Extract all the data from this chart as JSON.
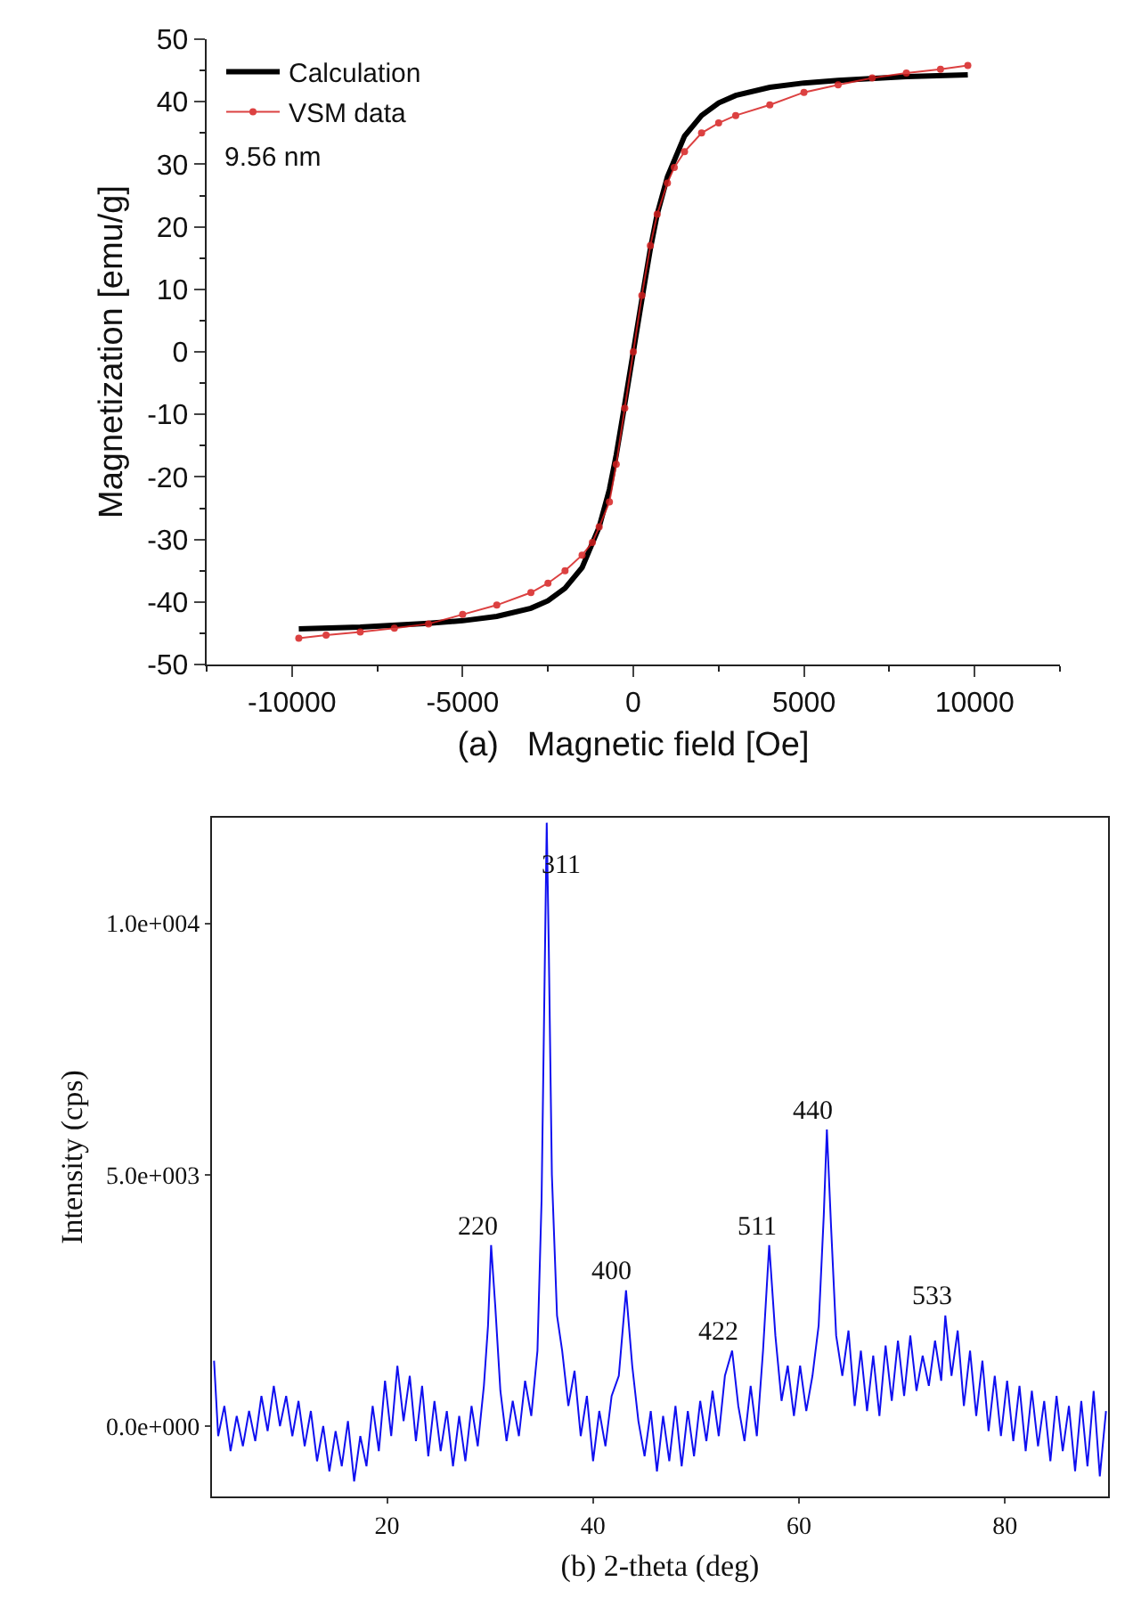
{
  "chart_data": [
    {
      "type": "line",
      "xlabel": "(a)   Magnetic field [Oe]",
      "ylabel": "Magnetization [emu/g]",
      "xlim": [
        -12500,
        12500
      ],
      "xticks": [
        -10000,
        -5000,
        0,
        5000,
        10000
      ],
      "ylim": [
        -50,
        50
      ],
      "yticks": [
        -50,
        -40,
        -30,
        -20,
        -10,
        0,
        10,
        20,
        30,
        40,
        50
      ],
      "legend": "top left",
      "line_style": "solid",
      "annotations": [
        "9.56 nm"
      ],
      "series": [
        {
          "name": "Calculation",
          "color": "#000000",
          "marker": "none",
          "x": [
            -9800,
            -8000,
            -6000,
            -5000,
            -4000,
            -3000,
            -2500,
            -2000,
            -1500,
            -1000,
            -700,
            -500,
            -300,
            0,
            300,
            500,
            700,
            1000,
            1500,
            2000,
            2500,
            3000,
            4000,
            5000,
            6000,
            8000,
            9800
          ],
          "values": [
            -44.3,
            -44.0,
            -43.4,
            -43.0,
            -42.3,
            -41.0,
            -39.8,
            -37.8,
            -34.5,
            -28,
            -22,
            -16.5,
            -10,
            0,
            10,
            16.5,
            22,
            28,
            34.5,
            37.8,
            39.8,
            41.0,
            42.3,
            43.0,
            43.4,
            44.0,
            44.3
          ]
        },
        {
          "name": "VSM data",
          "color": "#d62020",
          "marker": "circle",
          "x": [
            -9800,
            -9000,
            -8000,
            -7000,
            -6000,
            -5000,
            -4000,
            -3000,
            -2500,
            -2000,
            -1500,
            -1200,
            -1000,
            -700,
            -500,
            -250,
            0,
            250,
            500,
            700,
            1000,
            1200,
            1500,
            2000,
            2500,
            3000,
            4000,
            5000,
            6000,
            7000,
            8000,
            9000,
            9800
          ],
          "values": [
            -45.8,
            -45.3,
            -44.8,
            -44.2,
            -43.5,
            -42.0,
            -40.5,
            -38.5,
            -37.0,
            -35.0,
            -32.5,
            -30.5,
            -28,
            -24,
            -18,
            -9,
            0,
            9,
            17,
            22,
            27,
            29.5,
            32,
            35,
            36.6,
            37.8,
            39.5,
            41.5,
            42.7,
            43.8,
            44.6,
            45.2,
            45.8
          ]
        }
      ]
    },
    {
      "type": "line",
      "xlabel": "(b) 2-theta (deg)",
      "ylabel": "Intensity (cps)",
      "xlim": [
        3,
        90
      ],
      "xticks": [
        20,
        40,
        60,
        80
      ],
      "ylim": [
        -1400,
        12100
      ],
      "yticks": [
        {
          "value": 0,
          "label": "0.0e+000"
        },
        {
          "value": 5000,
          "label": "5.0e+003"
        },
        {
          "value": 10000,
          "label": "1.0e+004"
        }
      ],
      "legend": false,
      "line_style": "solid",
      "annotations": [
        {
          "text": "220",
          "x": 30.1,
          "y": 3600
        },
        {
          "text": "311",
          "x": 35.5,
          "y": 12000
        },
        {
          "text": "400",
          "x": 43.2,
          "y": 2700
        },
        {
          "text": "422",
          "x": 53.5,
          "y": 1500
        },
        {
          "text": "511",
          "x": 57.1,
          "y": 3600
        },
        {
          "text": "440",
          "x": 62.7,
          "y": 5900
        },
        {
          "text": "533",
          "x": 74.2,
          "y": 2200
        }
      ],
      "series": [
        {
          "color": "#1010f0",
          "marker": "none",
          "x": [
            3.2,
            3.6,
            4.2,
            4.8,
            5.4,
            6.0,
            6.6,
            7.2,
            7.8,
            8.4,
            9.0,
            9.6,
            10.2,
            10.8,
            11.4,
            12.0,
            12.6,
            13.2,
            13.8,
            14.4,
            15.0,
            15.6,
            16.2,
            16.8,
            17.4,
            18.0,
            18.6,
            19.2,
            19.8,
            20.4,
            21.0,
            21.6,
            22.2,
            22.8,
            23.4,
            24.0,
            24.6,
            25.2,
            25.8,
            26.4,
            27.0,
            27.6,
            28.2,
            28.8,
            29.4,
            29.8,
            30.1,
            30.5,
            31.0,
            31.6,
            32.2,
            32.8,
            33.4,
            34.0,
            34.6,
            35.0,
            35.3,
            35.5,
            35.7,
            36.0,
            36.5,
            37.0,
            37.6,
            38.2,
            38.8,
            39.4,
            40.0,
            40.6,
            41.2,
            41.8,
            42.5,
            43.2,
            43.8,
            44.4,
            45.0,
            45.6,
            46.2,
            46.8,
            47.4,
            48.0,
            48.6,
            49.2,
            49.8,
            50.4,
            51.0,
            51.6,
            52.2,
            52.8,
            53.5,
            54.1,
            54.7,
            55.3,
            55.9,
            56.5,
            57.1,
            57.7,
            58.3,
            58.9,
            59.5,
            60.1,
            60.7,
            61.3,
            61.9,
            62.4,
            62.7,
            63.1,
            63.6,
            64.2,
            64.8,
            65.4,
            66.0,
            66.6,
            67.2,
            67.8,
            68.4,
            69.0,
            69.6,
            70.2,
            70.8,
            71.4,
            72.0,
            72.6,
            73.2,
            73.8,
            74.2,
            74.8,
            75.4,
            76.0,
            76.6,
            77.2,
            77.8,
            78.4,
            79.0,
            79.6,
            80.2,
            80.8,
            81.4,
            82.0,
            82.6,
            83.2,
            83.8,
            84.4,
            85.0,
            85.6,
            86.2,
            86.8,
            87.4,
            88.0,
            88.6,
            89.2,
            89.8
          ],
          "values": [
            1300,
            -200,
            400,
            -500,
            200,
            -400,
            300,
            -300,
            600,
            -100,
            800,
            0,
            600,
            -200,
            500,
            -400,
            300,
            -700,
            0,
            -900,
            -100,
            -800,
            100,
            -1100,
            -200,
            -800,
            400,
            -500,
            900,
            -200,
            1200,
            100,
            1000,
            -300,
            800,
            -600,
            500,
            -500,
            300,
            -800,
            200,
            -700,
            400,
            -400,
            800,
            2000,
            3600,
            2400,
            700,
            -300,
            500,
            -200,
            900,
            200,
            1500,
            4500,
            9000,
            12000,
            9500,
            5000,
            2200,
            1500,
            400,
            1100,
            -200,
            600,
            -700,
            300,
            -400,
            600,
            1000,
            2700,
            1200,
            100,
            -600,
            300,
            -900,
            200,
            -700,
            400,
            -800,
            300,
            -600,
            500,
            -300,
            700,
            -200,
            1000,
            1500,
            400,
            -300,
            800,
            -200,
            1500,
            3600,
            1800,
            500,
            1200,
            200,
            1200,
            300,
            1000,
            2000,
            4200,
            5900,
            4000,
            1800,
            1000,
            1900,
            400,
            1500,
            300,
            1400,
            200,
            1600,
            500,
            1700,
            600,
            1800,
            700,
            1400,
            800,
            1700,
            900,
            2200,
            1000,
            1900,
            400,
            1500,
            200,
            1300,
            -100,
            1000,
            -200,
            900,
            -300,
            800,
            -500,
            700,
            -400,
            500,
            -700,
            600,
            -500,
            400,
            -900,
            500,
            -800,
            700,
            -1000,
            300
          ]
        }
      ]
    }
  ]
}
